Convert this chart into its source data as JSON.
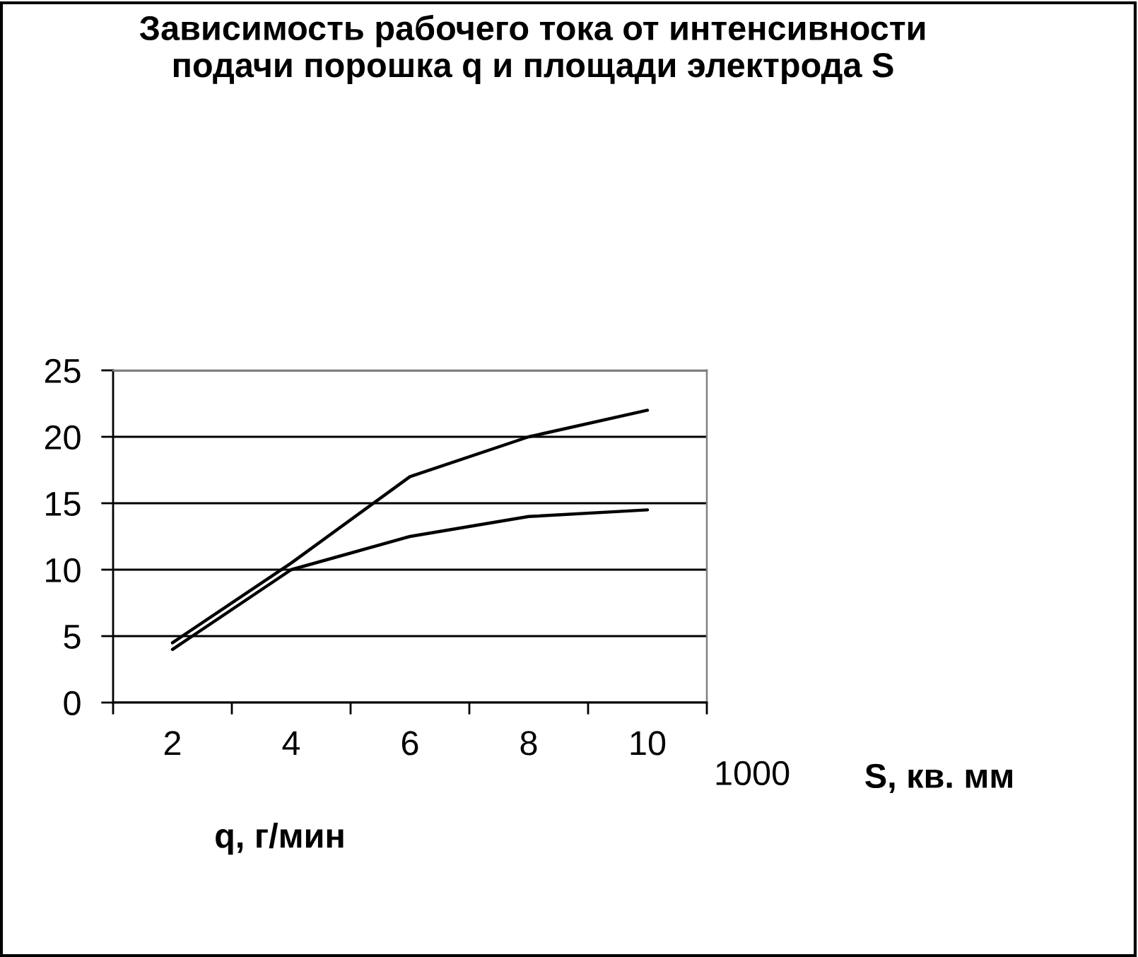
{
  "chart_data": {
    "type": "line",
    "title": "Зависимость рабочего тока от интенсивности\nподачи порошка q и площади электрода S",
    "xlabel": "q, г/мин",
    "legend_title": "S, кв. мм",
    "legend": "bottom right",
    "categories": [
      "2",
      "4",
      "6",
      "8",
      "10"
    ],
    "series": [
      {
        "name": "1000",
        "color": "#000000",
        "values": [
          4,
          10,
          12.5,
          14,
          14.5
        ]
      },
      {
        "color": "#000000",
        "values": [
          4.5,
          10.5,
          17,
          20,
          22
        ]
      }
    ],
    "ylim": [
      0,
      25
    ],
    "yticks": [
      0,
      5,
      10,
      15,
      20,
      25
    ],
    "grid": "y"
  }
}
